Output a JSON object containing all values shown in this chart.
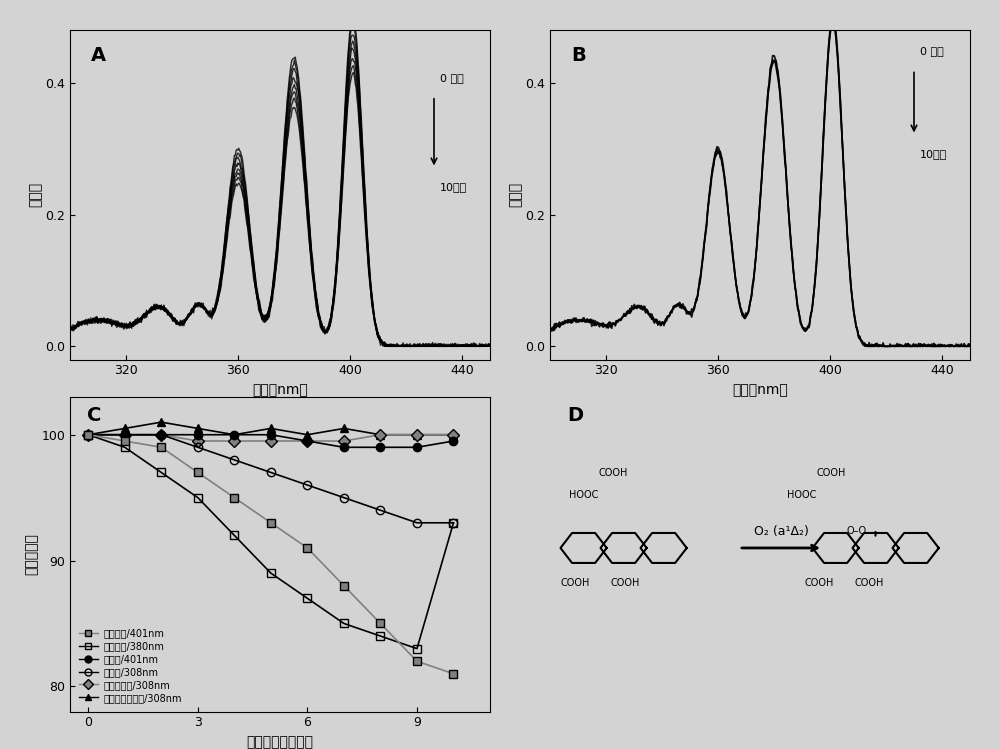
{
  "background_color": "#d3d3d3",
  "panel_bg": "#d3d3d3",
  "xlabel_AB": "波长（nmＩ",
  "ylabel_AB": "吸收値",
  "xlabel_C": "光照时间（分钟）",
  "ylabel_C": "相对吸收値",
  "xlim_AB": [
    300,
    450
  ],
  "ylim_A": [
    -0.02,
    0.48
  ],
  "ylim_B": [
    -0.02,
    0.48
  ],
  "xticks_AB": [
    320,
    360,
    400,
    440
  ],
  "yticks_A": [
    0.0,
    0.2,
    0.4
  ],
  "yticks_B": [
    0.0,
    0.2,
    0.4
  ],
  "label_A": "A",
  "label_B": "B",
  "label_C": "C",
  "label_D": "D",
  "annotation_0min": "0 分钟",
  "annotation_10min": "10分钟",
  "xlim_C": [
    -0.5,
    11
  ],
  "ylim_C": [
    78,
    103
  ],
  "xticks_C": [
    0,
    3,
    6,
    9
  ],
  "yticks_C": [
    80,
    90,
    100
  ],
  "legend_C": [
    "复合胶束/401nm",
    "复合胶束/380nm",
    "单胶束/401nm",
    "单胶束/308nm",
    "只有捕获剂/308nm",
    "复合胶束无光照/308nm"
  ],
  "C_x": [
    0,
    1,
    2,
    3,
    4,
    5,
    6,
    7,
    8,
    9,
    10
  ],
  "C_series1": [
    100,
    99.5,
    99,
    97,
    95,
    93,
    91,
    88,
    85,
    82,
    81
  ],
  "C_series2": [
    100,
    99,
    97,
    95,
    92,
    89,
    87,
    85,
    84,
    83,
    93
  ],
  "C_series3": [
    100,
    100,
    100,
    100,
    100,
    100,
    99.5,
    99,
    99,
    99,
    99.5
  ],
  "C_series4": [
    100,
    100,
    100,
    99,
    98,
    97,
    96,
    95,
    94,
    93,
    93
  ],
  "C_series5": [
    100,
    100,
    100,
    99.5,
    99.5,
    99.5,
    99.5,
    99.5,
    100,
    100,
    100
  ],
  "C_series6": [
    100,
    100.5,
    101,
    100.5,
    100,
    100.5,
    100,
    100.5,
    100,
    100,
    100
  ]
}
